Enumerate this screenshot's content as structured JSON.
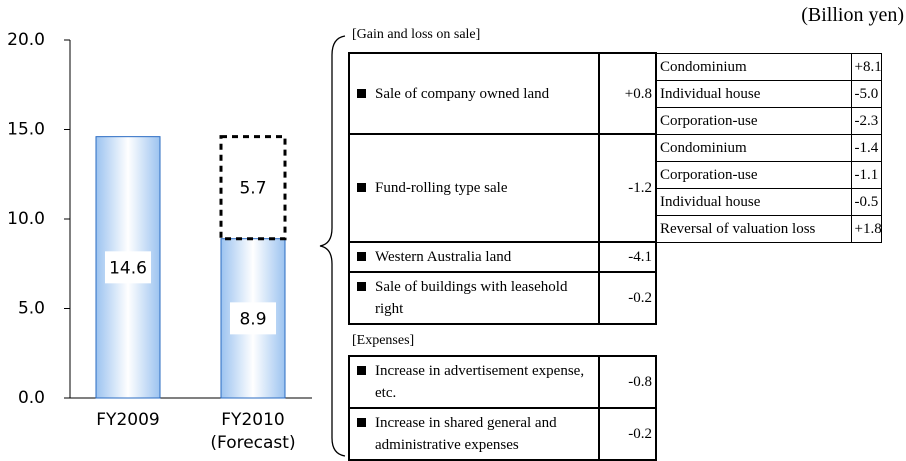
{
  "chart_data": {
    "type": "bar",
    "categories": [
      [
        "FY2009"
      ],
      [
        "FY2010",
        "(Forecast)"
      ]
    ],
    "series": [
      {
        "values": [
          14.6,
          8.9
        ],
        "color": "#bcd8f7",
        "style": "solid"
      },
      {
        "values": [
          null,
          5.7
        ],
        "color": "#000000",
        "style": "dashed"
      }
    ],
    "ylim": [
      0,
      20
    ],
    "yticks": [
      {
        "value": 0,
        "label": "0.0"
      },
      {
        "value": 5,
        "label": "5.0"
      },
      {
        "value": 10,
        "label": "10.0"
      },
      {
        "value": 15,
        "label": "15.0"
      },
      {
        "value": 20,
        "label": "20.0"
      }
    ],
    "grid": false
  },
  "table": {
    "unit": "(Billion yen)",
    "sections": [
      {
        "heading": "[Gain and loss on sale]",
        "rows": [
          {
            "label": "Sale of company owned land",
            "value": "+0.8",
            "details": [
              [
                "Condominium",
                "+8.1"
              ],
              [
                "Individual house",
                "-5.0"
              ],
              [
                "Corporation-use",
                "-2.3"
              ]
            ]
          },
          {
            "label": "Fund-rolling type sale",
            "value": "-1.2",
            "details": [
              [
                "Condominium",
                "-1.4"
              ],
              [
                "Corporation-use",
                "-1.1"
              ],
              [
                "Individual house",
                "-0.5"
              ],
              [
                "Reversal of valuation loss",
                "+1.8"
              ]
            ]
          },
          {
            "label": "Western Australia land",
            "value": "-4.1"
          },
          {
            "label": "Sale of buildings with leasehold right",
            "value": "-0.2"
          }
        ]
      },
      {
        "heading": "[Expenses]",
        "rows": [
          {
            "label": "Increase in advertisement expense, etc.",
            "value": "-0.8"
          },
          {
            "label": "Increase in shared general and administrative expenses",
            "value": "-0.2"
          }
        ]
      }
    ]
  }
}
